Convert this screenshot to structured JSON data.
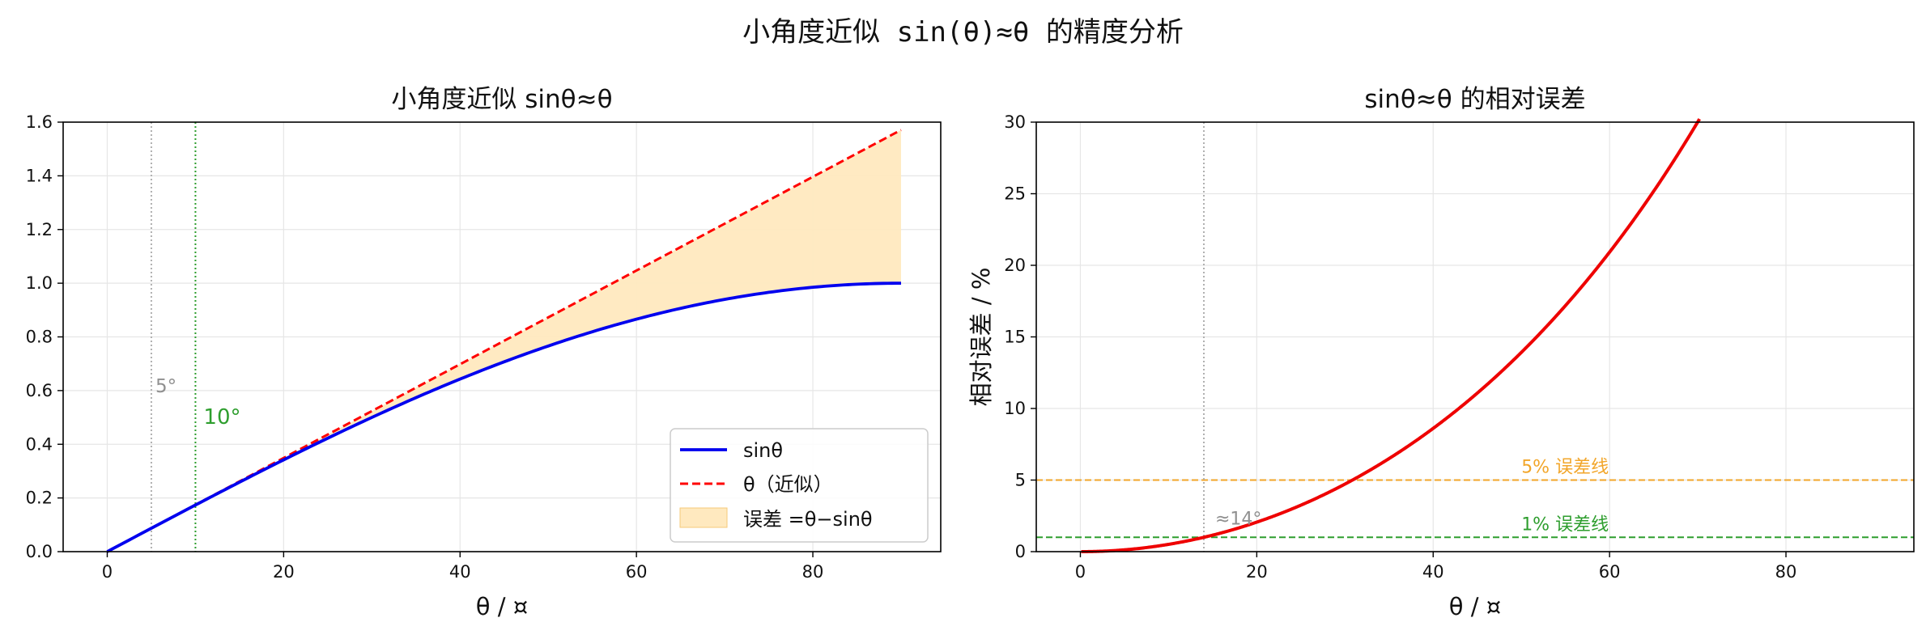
{
  "figure": {
    "suptitle": "小角度近似 sin(θ)≈θ 的精度分析"
  },
  "colors": {
    "sin": "#0000ee",
    "theta": "#ff0000",
    "fill": "#ffe9bf",
    "fill_edge": "#f5c97a",
    "vline5": "#b0b0b0",
    "vline10": "#2e9e2e",
    "err5": "#f2a62a",
    "err1": "#2e9e2e",
    "curve": "#ee0000"
  },
  "chart_data": [
    {
      "type": "line",
      "title": "小角度近似 sinθ≈θ",
      "xlabel": "θ / ¤",
      "ylabel": "",
      "xlim": [
        -5,
        94.5
      ],
      "ylim": [
        0,
        1.6
      ],
      "xticks": [
        0,
        20,
        40,
        60,
        80
      ],
      "yticks": [
        0.0,
        0.2,
        0.4,
        0.6,
        0.8,
        1.0,
        1.2,
        1.4,
        1.6
      ],
      "grid": true,
      "legend_position": "lower-right",
      "series": [
        {
          "name": "sinθ",
          "function": "sin",
          "x_range_deg": [
            0,
            90
          ],
          "style": "solid"
        },
        {
          "name": "θ（近似）",
          "function": "theta",
          "x_range_deg": [
            0,
            90
          ],
          "style": "dashed"
        },
        {
          "name": "误差 =θ−sinθ",
          "function": "fill_between",
          "x_range_deg": [
            0,
            90
          ],
          "style": "area"
        }
      ],
      "annotations": [
        {
          "x": 5,
          "label": "5°",
          "kind": "vline"
        },
        {
          "x": 10,
          "label": "10°",
          "kind": "vline"
        }
      ]
    },
    {
      "type": "line",
      "title": "sinθ≈θ 的相对误差",
      "xlabel": "θ / ¤",
      "ylabel": "相对误差 / %",
      "xlim": [
        -5,
        94.5
      ],
      "ylim": [
        0,
        30
      ],
      "xticks": [
        0,
        20,
        40,
        60,
        80
      ],
      "yticks": [
        0,
        5,
        10,
        15,
        20,
        25,
        30
      ],
      "grid": true,
      "series": [
        {
          "name": "相对误差",
          "function": "relative_error_percent",
          "x_range_deg": [
            0,
            90
          ],
          "style": "solid"
        }
      ],
      "hlines": [
        {
          "y": 5,
          "label": "5% 误差线"
        },
        {
          "y": 1,
          "label": "1% 误差线"
        }
      ],
      "annotations": [
        {
          "x": 14,
          "label": "≈14°",
          "kind": "vline"
        }
      ]
    }
  ]
}
